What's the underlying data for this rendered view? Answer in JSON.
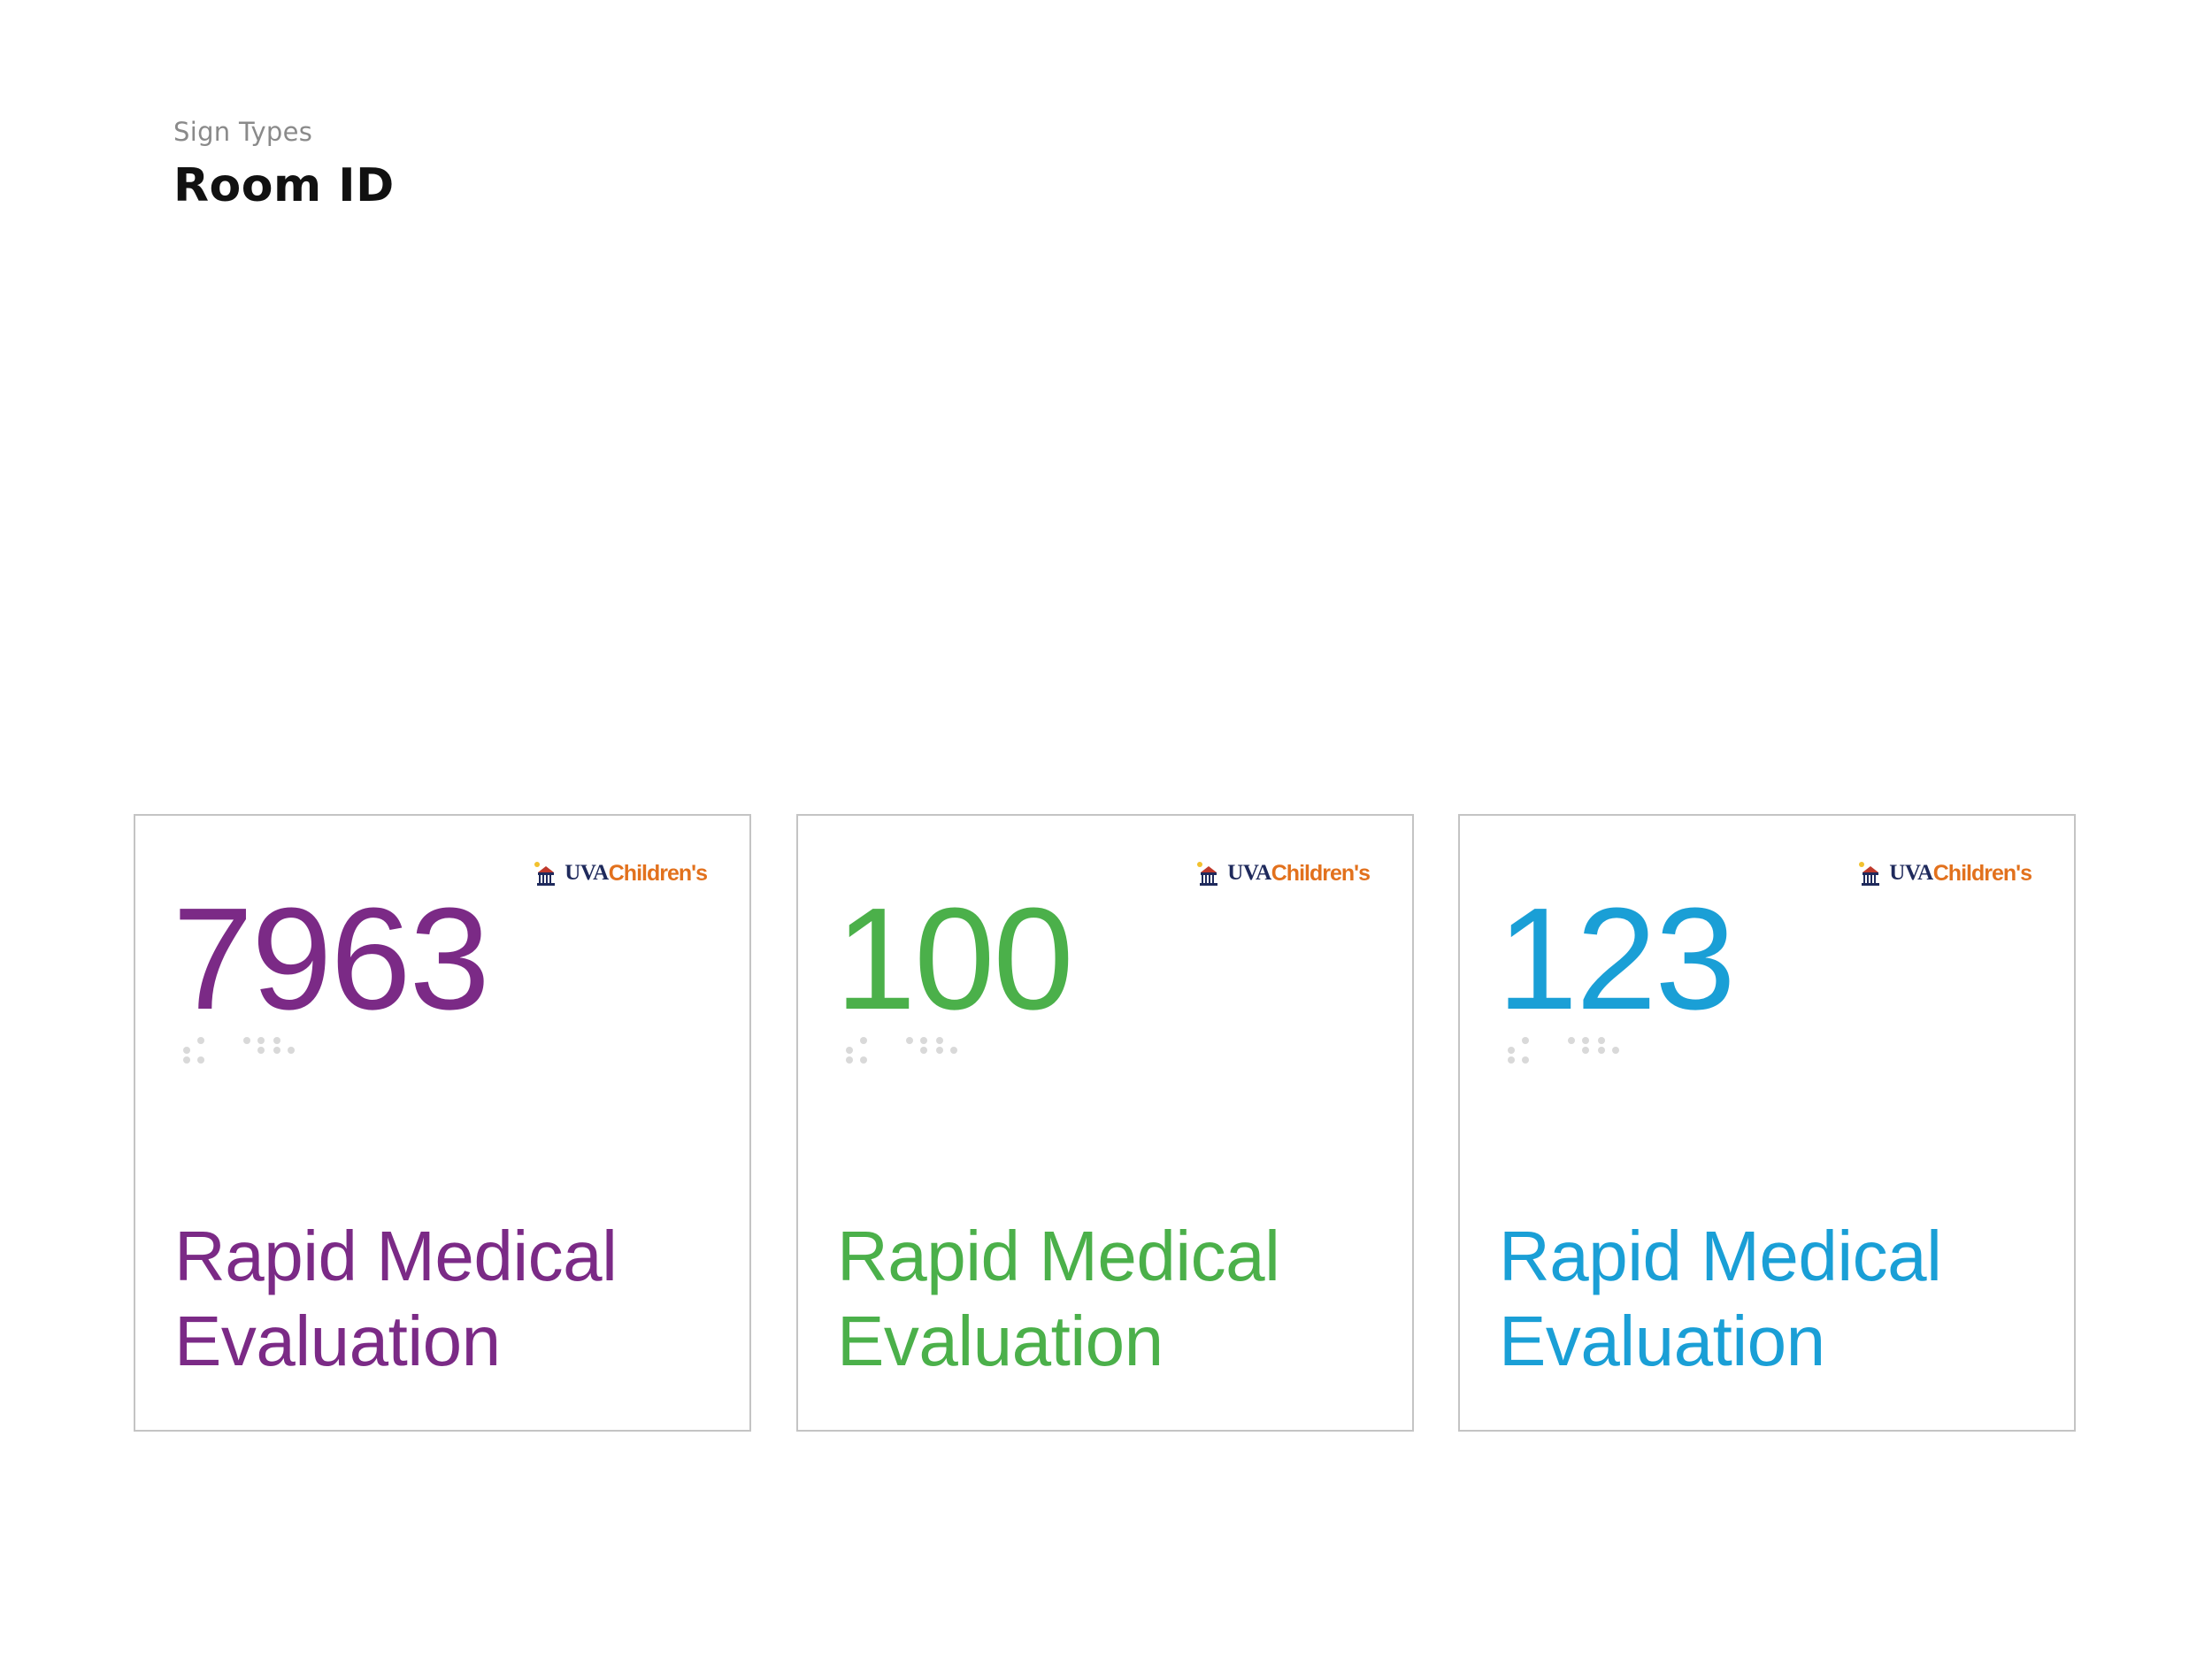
{
  "header": {
    "eyebrow": "Sign Types",
    "title": "Room ID"
  },
  "logo": {
    "icon": "uva-rotunda-icon",
    "uva_text": "UVA",
    "children_text": "Children's"
  },
  "signs": [
    {
      "number": "7963",
      "name": "Rapid Medical\nEvaluation",
      "color": "#7b2a86"
    },
    {
      "number": "100",
      "name": "Rapid Medical\nEvaluation",
      "color": "#4bb04a"
    },
    {
      "number": "123",
      "name": "Rapid Medical\nEvaluation",
      "color": "#1a9fd6"
    }
  ],
  "colors": {
    "logo_navy": "#1f2a5c",
    "logo_orange": "#e2711d",
    "border": "#c4c4c4",
    "braille": "#d9d9d9"
  }
}
